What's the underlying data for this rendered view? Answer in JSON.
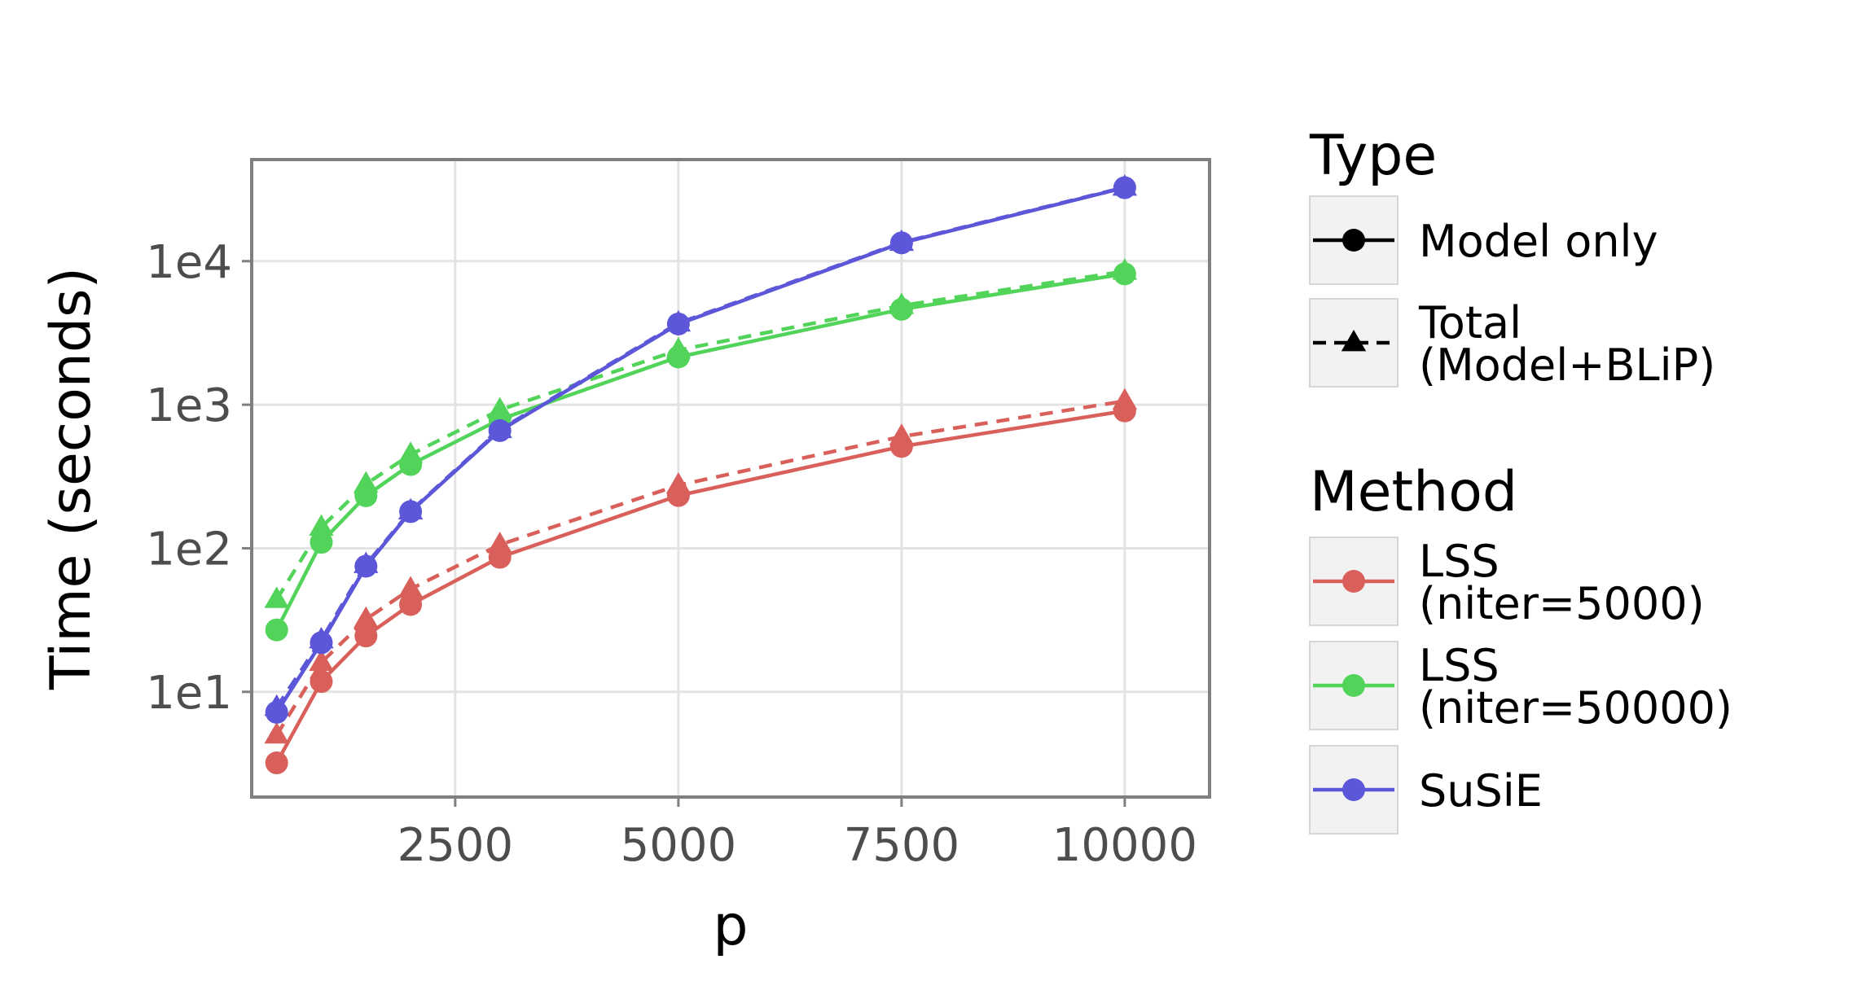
{
  "chart_data": {
    "type": "line",
    "title": "",
    "xlabel": "p",
    "ylabel": "Time (seconds)",
    "x_scale": "linear",
    "y_scale": "log10",
    "xlim": [
      220,
      10950
    ],
    "ylim": [
      1.85,
      51000
    ],
    "x_ticks": [
      2500,
      5000,
      7500,
      10000
    ],
    "x_tick_labels": [
      "2500",
      "5000",
      "7500",
      "10000"
    ],
    "y_ticks": [
      10,
      100,
      1000,
      10000
    ],
    "y_tick_labels": [
      "1e1",
      "1e2",
      "1e3",
      "1e4"
    ],
    "grid": true,
    "legend_position": "right",
    "x": [
      500,
      1000,
      1500,
      2000,
      3000,
      5000,
      7500,
      10000
    ],
    "colors": {
      "lss5000": "#d9605a",
      "lss50000": "#52d35a",
      "susie": "#5c56d8"
    },
    "series": [
      {
        "method": "LSS\n(niter=5000)",
        "type": "Model only",
        "color": "#d9605a",
        "values": [
          3.2,
          11.8,
          24.5,
          40.6,
          86.5,
          233.0,
          512.0,
          905.0
        ]
      },
      {
        "method": "LSS\n(niter=5000)",
        "type": "Total\n(Model+BLiP)",
        "color": "#d9605a",
        "values": [
          5.0,
          16.0,
          32.0,
          52.0,
          106.0,
          275.0,
          600.0,
          1060.0
        ]
      },
      {
        "method": "LSS\n(niter=50000)",
        "type": "Model only",
        "color": "#52d35a",
        "values": [
          27.0,
          110.0,
          232.0,
          383.0,
          790.0,
          2150.0,
          4620.0,
          8150.0
        ]
      },
      {
        "method": "LSS\n(niter=50000)",
        "type": "Total\n(Model+BLiP)",
        "color": "#52d35a",
        "values": [
          44.0,
          140.0,
          280.0,
          450.0,
          920.0,
          2400.0,
          4900.0,
          8500.0
        ]
      },
      {
        "method": "SuSiE",
        "type": "Model only",
        "color": "#5c56d8",
        "values": [
          7.2,
          22.0,
          75.0,
          180.0,
          660.0,
          3650.0,
          13400.0,
          32500.0
        ]
      },
      {
        "method": "SuSiE",
        "type": "Total\n(Model+BLiP)",
        "color": "#5c56d8",
        "values": [
          7.8,
          23.0,
          77.0,
          182.0,
          670.0,
          3700.0,
          13500.0,
          32700.0
        ]
      }
    ],
    "legend": {
      "type": {
        "title": "Type",
        "entries": [
          {
            "label_lines": [
              "Model only"
            ],
            "linestyle": "solid",
            "marker": "circle"
          },
          {
            "label_lines": [
              "Total",
              "(Model+BLiP)"
            ],
            "linestyle": "dashed",
            "marker": "triangle"
          }
        ]
      },
      "method": {
        "title": "Method",
        "entries": [
          {
            "label_lines": [
              "LSS",
              "(niter=5000)"
            ],
            "color": "#d9605a"
          },
          {
            "label_lines": [
              "LSS",
              "(niter=50000)"
            ],
            "color": "#52d35a"
          },
          {
            "label_lines": [
              "SuSiE"
            ],
            "color": "#5c56d8"
          }
        ]
      }
    }
  }
}
